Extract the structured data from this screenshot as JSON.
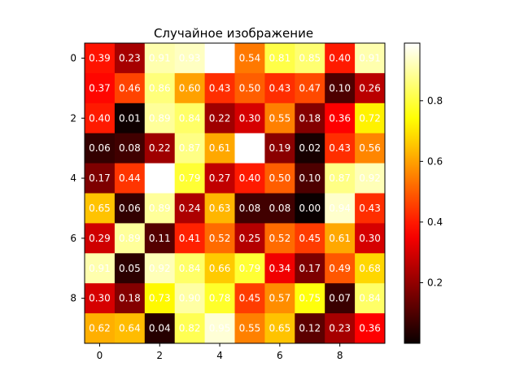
{
  "chart_data": {
    "type": "heatmap",
    "title": "Случайное изображение",
    "colormap": "hot",
    "x_ticks": [
      "0",
      "2",
      "4",
      "6",
      "8"
    ],
    "y_ticks": [
      "0",
      "2",
      "4",
      "6",
      "8"
    ],
    "colorbar_ticks": [
      "0.2",
      "0.4",
      "0.6",
      "0.8"
    ],
    "colorbar_tick_values": [
      0.2,
      0.4,
      0.6,
      0.8
    ],
    "vmin": 0.0,
    "vmax": 0.99,
    "label_color": "#ffffff",
    "values": [
      [
        0.39,
        0.23,
        0.91,
        0.93,
        0.99,
        0.54,
        0.81,
        0.85,
        0.4,
        0.91
      ],
      [
        0.37,
        0.46,
        0.86,
        0.6,
        0.43,
        0.5,
        0.43,
        0.47,
        0.1,
        0.26
      ],
      [
        0.4,
        0.01,
        0.89,
        0.84,
        0.22,
        0.3,
        0.55,
        0.18,
        0.36,
        0.72
      ],
      [
        0.06,
        0.08,
        0.22,
        0.87,
        0.61,
        0.99,
        0.19,
        0.02,
        0.43,
        0.56
      ],
      [
        0.17,
        0.44,
        0.99,
        0.79,
        0.27,
        0.4,
        0.5,
        0.1,
        0.87,
        0.92
      ],
      [
        0.65,
        0.06,
        0.89,
        0.24,
        0.63,
        0.08,
        0.08,
        0.0,
        0.94,
        0.43
      ],
      [
        0.29,
        0.89,
        0.11,
        0.41,
        0.52,
        0.25,
        0.52,
        0.45,
        0.61,
        0.3
      ],
      [
        0.91,
        0.05,
        0.92,
        0.84,
        0.66,
        0.79,
        0.34,
        0.17,
        0.49,
        0.68
      ],
      [
        0.3,
        0.18,
        0.73,
        0.9,
        0.78,
        0.45,
        0.57,
        0.75,
        0.07,
        0.84
      ],
      [
        0.62,
        0.64,
        0.04,
        0.82,
        0.95,
        0.55,
        0.65,
        0.12,
        0.23,
        0.36
      ]
    ]
  }
}
